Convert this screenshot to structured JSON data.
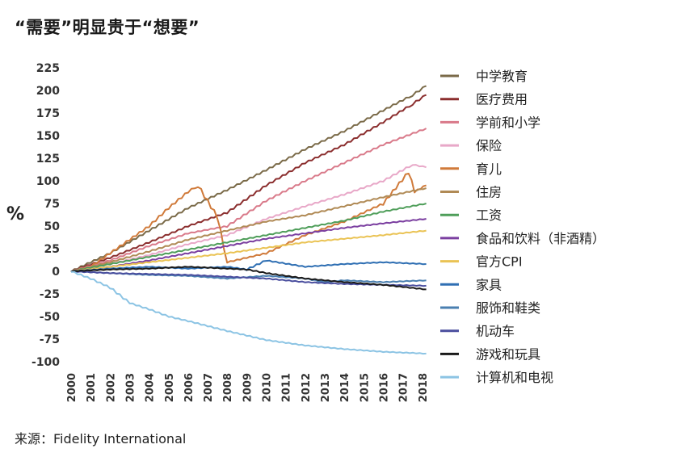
{
  "title": "“需要”明显贵于“想要”",
  "source": "来源：Fidelity International",
  "chart_data": {
    "type": "line",
    "ylabel": "%",
    "ylim": [
      -100,
      225
    ],
    "xlim": [
      2000,
      2018.3
    ],
    "y_ticks": [
      225,
      200,
      175,
      150,
      125,
      100,
      75,
      50,
      25,
      0,
      -25,
      -50,
      -75,
      -100
    ],
    "x_ticks": [
      "2000",
      "2001",
      "2002",
      "2003",
      "2004",
      "2005",
      "2006",
      "2007",
      "2008",
      "2009",
      "2010",
      "2011",
      "2012",
      "2013",
      "2014",
      "2015",
      "2016",
      "2017",
      "2018"
    ],
    "legend_position": "right",
    "series": [
      {
        "name": "中学教育",
        "color": "#7a6a48",
        "x": [
          2000,
          2002,
          2004,
          2006,
          2008,
          2010,
          2012,
          2014,
          2016,
          2017.5,
          2018.2
        ],
        "y": [
          0,
          20,
          45,
          70,
          90,
          112,
          135,
          155,
          178,
          195,
          205
        ]
      },
      {
        "name": "医疗费用",
        "color": "#8b2e2e",
        "x": [
          2000,
          2002,
          2004,
          2006,
          2008,
          2010,
          2012,
          2014,
          2016,
          2017.5,
          2018.2
        ],
        "y": [
          0,
          15,
          32,
          50,
          65,
          95,
          120,
          140,
          165,
          185,
          195
        ]
      },
      {
        "name": "学前和小学",
        "color": "#d97a8a",
        "x": [
          2000,
          2002,
          2004,
          2006,
          2008,
          2010,
          2012,
          2014,
          2016,
          2018.2
        ],
        "y": [
          0,
          12,
          28,
          42,
          50,
          78,
          100,
          120,
          140,
          158
        ]
      },
      {
        "name": "保险",
        "color": "#e8a8c8",
        "x": [
          2000,
          2002,
          2004,
          2006,
          2008,
          2010,
          2012,
          2014,
          2016,
          2017.5,
          2018.2
        ],
        "y": [
          0,
          8,
          18,
          30,
          40,
          58,
          72,
          85,
          100,
          118,
          115
        ]
      },
      {
        "name": "育儿",
        "color": "#d07a3a",
        "x": [
          2000,
          2001,
          2002,
          2003,
          2004,
          2005,
          2006,
          2006.5,
          2007.5,
          2008,
          2010,
          2012,
          2014,
          2016,
          2017.3,
          2017.6,
          2018.2
        ],
        "y": [
          0,
          5,
          20,
          35,
          50,
          70,
          88,
          95,
          60,
          10,
          20,
          40,
          55,
          75,
          110,
          88,
          95
        ]
      },
      {
        "name": "住房",
        "color": "#b08a55",
        "x": [
          2000,
          2002,
          2004,
          2006,
          2008,
          2010,
          2012,
          2014,
          2016,
          2018.2
        ],
        "y": [
          0,
          10,
          22,
          35,
          45,
          55,
          62,
          72,
          82,
          92
        ]
      },
      {
        "name": "工资",
        "color": "#4f9e5a",
        "x": [
          2000,
          2002,
          2004,
          2006,
          2008,
          2010,
          2012,
          2014,
          2016,
          2018.2
        ],
        "y": [
          0,
          8,
          16,
          24,
          32,
          40,
          48,
          56,
          66,
          75
        ]
      },
      {
        "name": "食品和饮料（非酒精）",
        "color": "#7b3fa0",
        "x": [
          2000,
          2002,
          2004,
          2006,
          2008,
          2010,
          2012,
          2014,
          2016,
          2018.2
        ],
        "y": [
          0,
          5,
          12,
          20,
          28,
          36,
          42,
          48,
          53,
          58
        ]
      },
      {
        "name": "官方CPI",
        "color": "#eac354",
        "x": [
          2000,
          2002,
          2004,
          2006,
          2008,
          2010,
          2012,
          2014,
          2016,
          2018.2
        ],
        "y": [
          0,
          5,
          10,
          15,
          20,
          26,
          32,
          36,
          40,
          45
        ]
      },
      {
        "name": "家具",
        "color": "#2f6fb3",
        "x": [
          2000,
          2002,
          2004,
          2006,
          2008,
          2009,
          2010,
          2012,
          2014,
          2016,
          2018.2
        ],
        "y": [
          0,
          3,
          5,
          3,
          5,
          2,
          12,
          5,
          8,
          10,
          8
        ]
      },
      {
        "name": "服饰和鞋类",
        "color": "#4a7fb0",
        "x": [
          2000,
          2002,
          2004,
          2006,
          2008,
          2010,
          2012,
          2013,
          2014,
          2016,
          2018.2
        ],
        "y": [
          0,
          -2,
          -4,
          -5,
          -8,
          -5,
          -8,
          -12,
          -10,
          -12,
          -10
        ]
      },
      {
        "name": "机动车",
        "color": "#4a4e9e",
        "x": [
          2000,
          2002,
          2004,
          2006,
          2008,
          2010,
          2012,
          2014,
          2016,
          2018.2
        ],
        "y": [
          0,
          -2,
          -3,
          -4,
          -6,
          -8,
          -12,
          -14,
          -15,
          -16
        ]
      },
      {
        "name": "游戏和玩具",
        "color": "#1a1a1a",
        "x": [
          2000,
          2002,
          2004,
          2006,
          2008,
          2009,
          2010,
          2012,
          2014,
          2016,
          2018.2
        ],
        "y": [
          0,
          2,
          3,
          5,
          3,
          2,
          -2,
          -8,
          -12,
          -15,
          -20
        ]
      },
      {
        "name": "计算机和电视",
        "color": "#8cc4e4",
        "x": [
          2000,
          2001,
          2002,
          2003,
          2004,
          2005,
          2006,
          2008,
          2010,
          2012,
          2014,
          2016,
          2018.2
        ],
        "y": [
          0,
          -8,
          -18,
          -35,
          -42,
          -50,
          -55,
          -66,
          -76,
          -82,
          -86,
          -89,
          -91
        ]
      }
    ]
  }
}
